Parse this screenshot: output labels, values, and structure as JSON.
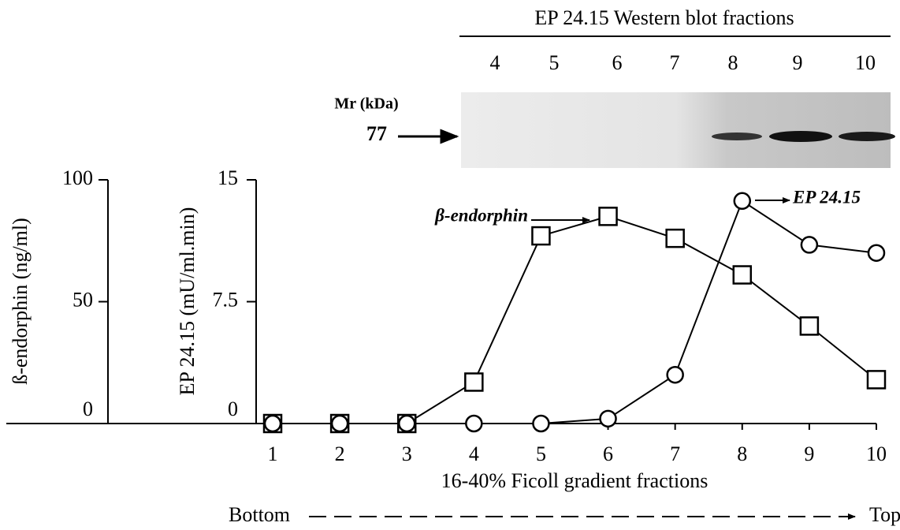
{
  "chart_data": {
    "type": "line",
    "y_label": "ß-endorphin (ng/ml)",
    "y2_label": "EP 24.15 (mU/ml.min)",
    "x_label": "16-40% Ficoll gradient fractions",
    "direction": {
      "start": "Bottom",
      "end": "Top"
    },
    "x": [
      1,
      2,
      3,
      4,
      5,
      6,
      7,
      8,
      9,
      10
    ],
    "xlim": [
      1,
      10
    ],
    "xticks": [
      1,
      2,
      3,
      4,
      5,
      6,
      7,
      8,
      9,
      10
    ],
    "ylim": [
      0,
      100
    ],
    "yticks": [
      0,
      50,
      100
    ],
    "y2lim": [
      0,
      15
    ],
    "y2ticks": [
      0,
      7.5,
      15
    ],
    "series": [
      {
        "name": "β-endorphin",
        "color": "#000000",
        "marker": "square",
        "values": [
          0,
          0,
          0,
          17,
          77,
          85,
          76,
          61,
          40,
          18
        ]
      },
      {
        "name": "EP 24.15",
        "color": "#000000",
        "marker": "circle",
        "axis": "y2",
        "values": [
          0,
          0,
          0,
          0,
          0,
          0.3,
          3.0,
          13.7,
          11.0,
          10.5
        ]
      }
    ]
  },
  "blot": {
    "title": "EP 24.15 Western blot fractions",
    "lanes": [
      "4",
      "5",
      "6",
      "7",
      "8",
      "9",
      "10"
    ],
    "mr_label": "Mr  (kDa)",
    "marker": "77"
  }
}
